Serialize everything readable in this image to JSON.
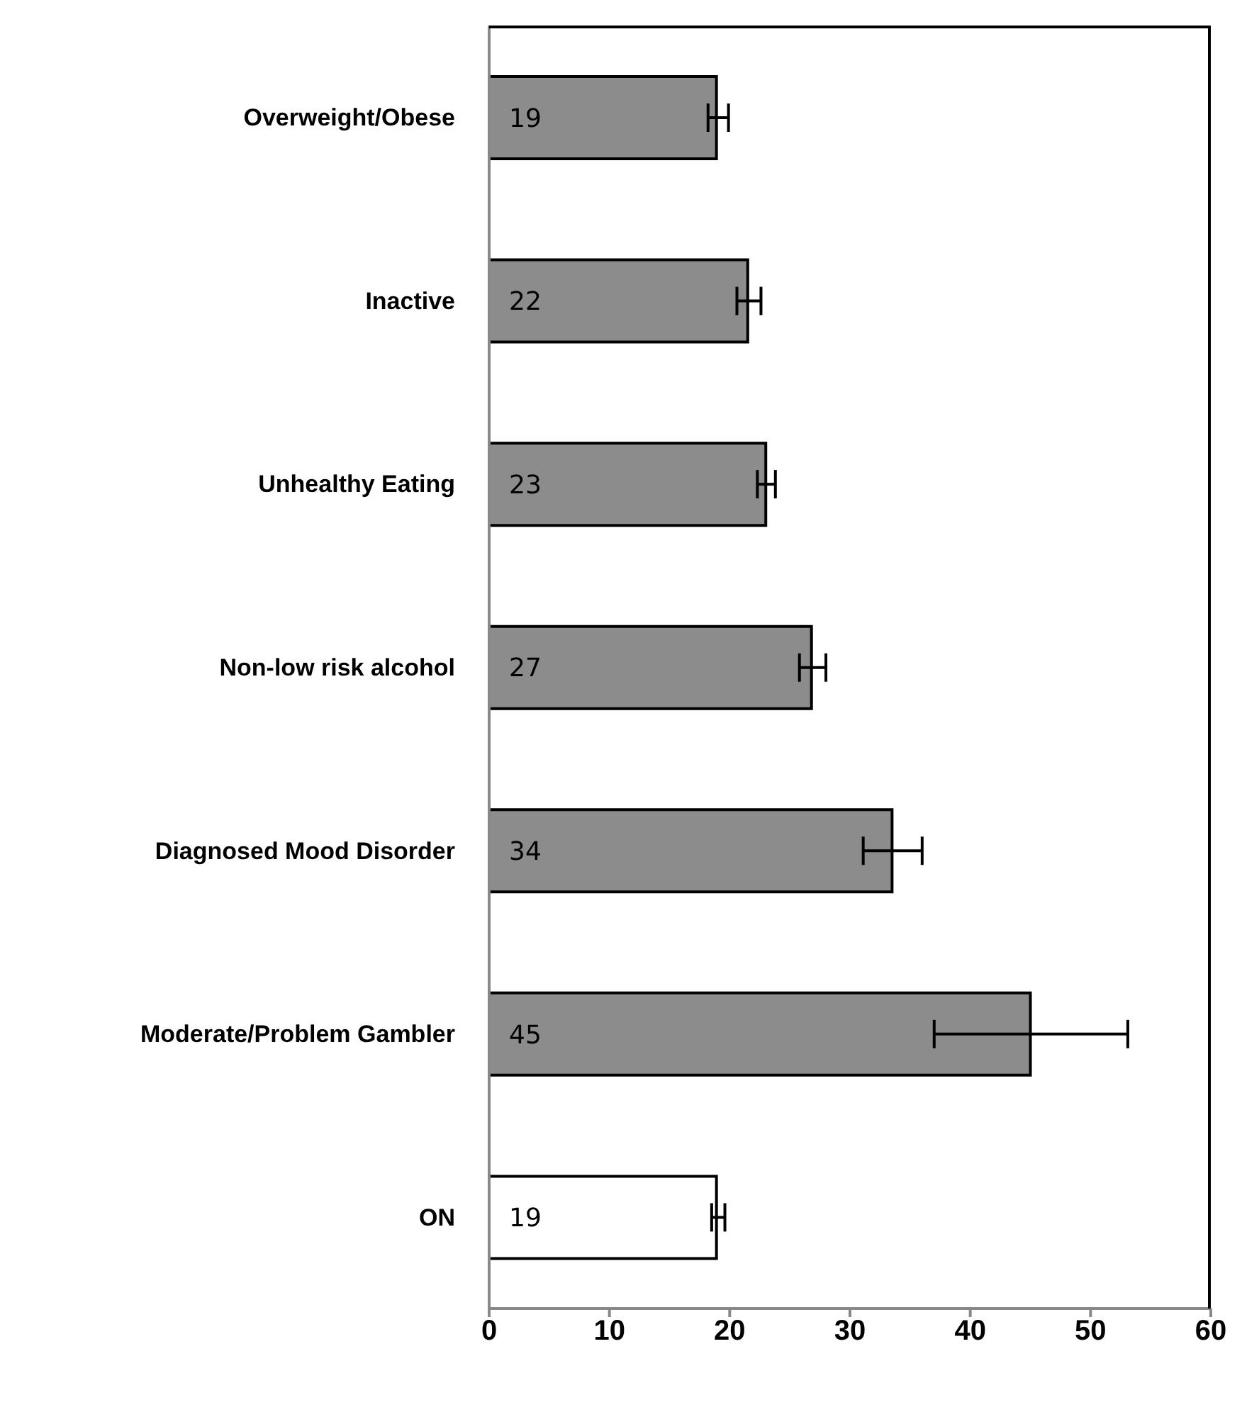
{
  "chart_data": {
    "type": "bar",
    "orientation": "horizontal",
    "categories": [
      "Overweight/Obese",
      "Inactive",
      "Unhealthy Eating",
      "Non-low risk alcohol",
      "Diagnosed Mood Disorder",
      "Moderate/Problem Gambler",
      "ON"
    ],
    "values": [
      18.9,
      21.5,
      23.0,
      26.8,
      33.5,
      45.0,
      18.9
    ],
    "value_labels": [
      "19",
      "22",
      "23",
      "27",
      "34",
      "45",
      "19"
    ],
    "errors": [
      [
        18.2,
        19.9
      ],
      [
        20.6,
        22.6
      ],
      [
        22.3,
        23.8
      ],
      [
        25.8,
        28.0
      ],
      [
        31.1,
        36.0
      ],
      [
        37.0,
        53.1
      ],
      [
        18.5,
        19.6
      ]
    ],
    "colors": [
      "#8c8c8c",
      "#8c8c8c",
      "#8c8c8c",
      "#8c8c8c",
      "#8c8c8c",
      "#8c8c8c",
      "#ffffff"
    ],
    "xlim": [
      0,
      60
    ],
    "xticks": [
      0,
      10,
      20,
      30,
      40,
      50,
      60
    ],
    "grid": false
  }
}
